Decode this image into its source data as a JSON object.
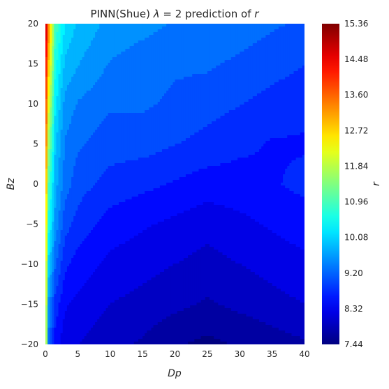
{
  "chart_data": {
    "type": "heatmap",
    "subtype": "filled-contour",
    "title": {
      "prefix": "PINN(Shue) ",
      "lambda": "λ",
      "equals": " = 2 prediction of ",
      "var": "r"
    },
    "xlabel": "Dp",
    "ylabel": "Bz",
    "xlim": [
      0,
      40
    ],
    "ylim": [
      -20,
      20
    ],
    "x_ticks": [
      "0",
      "5",
      "10",
      "15",
      "20",
      "25",
      "30",
      "35",
      "40"
    ],
    "y_ticks": [
      "−20",
      "−15",
      "−10",
      "−5",
      "0",
      "5",
      "10",
      "15",
      "20"
    ],
    "colorbar": {
      "label": "r",
      "colormap": "jet",
      "range": [
        7.44,
        15.36
      ],
      "ticks": [
        "15.36",
        "14.48",
        "13.60",
        "12.72",
        "11.84",
        "10.96",
        "10.08",
        "9.20",
        "8.32",
        "7.44"
      ]
    },
    "grid": false,
    "field_samples": {
      "x": [
        0,
        0.5,
        1.5,
        3,
        5,
        10,
        15,
        20,
        25,
        30,
        35,
        40
      ],
      "y": [
        -20,
        -15,
        -10,
        -5,
        0,
        5,
        10,
        15,
        20
      ],
      "z": [
        [
          12.7,
          9.3,
          8.5,
          8.2,
          8.1,
          7.9,
          7.8,
          7.6,
          7.5,
          7.6,
          7.7,
          7.8
        ],
        [
          12.9,
          9.6,
          8.8,
          8.4,
          8.3,
          8.1,
          8.0,
          7.9,
          7.8,
          7.9,
          8.0,
          8.1
        ],
        [
          13.0,
          10.1,
          9.2,
          8.7,
          8.5,
          8.3,
          8.2,
          8.1,
          8.0,
          8.1,
          8.2,
          8.3
        ],
        [
          13.2,
          10.6,
          9.6,
          9.0,
          8.8,
          8.5,
          8.4,
          8.3,
          8.2,
          8.3,
          8.4,
          8.5
        ],
        [
          13.5,
          11.0,
          9.8,
          9.3,
          9.0,
          8.8,
          8.7,
          8.6,
          8.5,
          8.5,
          8.6,
          8.7
        ],
        [
          13.9,
          11.6,
          10.0,
          9.4,
          9.2,
          9.0,
          9.0,
          8.9,
          8.8,
          8.7,
          8.6,
          8.6
        ],
        [
          14.3,
          12.2,
          10.3,
          9.6,
          9.4,
          9.2,
          9.2,
          9.1,
          9.0,
          8.9,
          8.8,
          8.7
        ],
        [
          14.7,
          12.8,
          10.6,
          9.9,
          9.7,
          9.4,
          9.3,
          9.2,
          9.2,
          9.1,
          9.0,
          8.9
        ],
        [
          15.3,
          13.4,
          11.0,
          10.2,
          9.9,
          9.6,
          9.5,
          9.4,
          9.4,
          9.3,
          9.2,
          9.1
        ]
      ]
    }
  }
}
